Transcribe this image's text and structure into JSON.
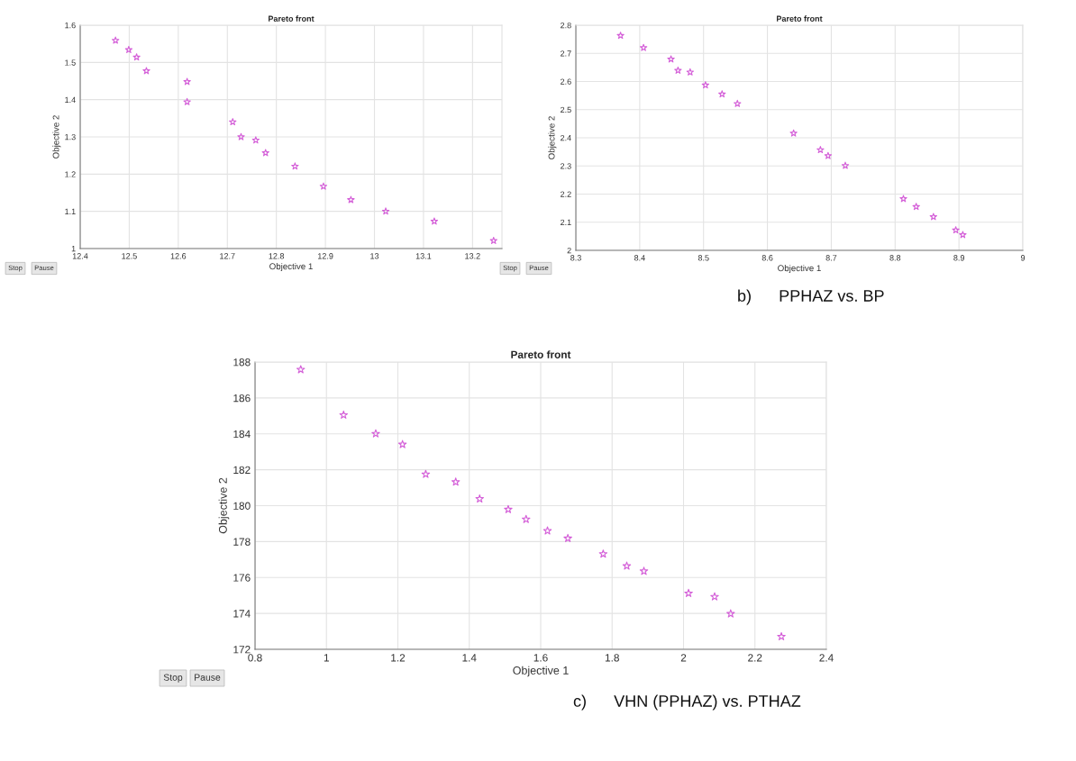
{
  "chart_data": [
    {
      "type": "scatter",
      "title": "Pareto front",
      "xlabel": "Objective 1",
      "ylabel": "Objective 2",
      "marker": "star",
      "grid": true,
      "x": [
        12.472,
        12.499,
        12.515,
        12.535,
        12.618,
        12.618,
        12.711,
        12.728,
        12.758,
        12.778,
        12.838,
        12.896,
        12.952,
        13.023,
        13.122,
        13.243
      ],
      "series": [
        {
          "color": "#d45fd8",
          "values": [
            1.559,
            1.534,
            1.514,
            1.477,
            1.448,
            1.394,
            1.34,
            1.3,
            1.291,
            1.257,
            1.221,
            1.167,
            1.131,
            1.1,
            1.073,
            1.021
          ]
        }
      ],
      "xlim": [
        12.4,
        13.26
      ],
      "xticks": [
        12.4,
        12.5,
        12.6,
        12.7,
        12.8,
        12.9,
        13,
        13.1,
        13.2
      ],
      "ylim": [
        1,
        1.6
      ],
      "yticks": [
        1,
        1.1,
        1.2,
        1.3,
        1.4,
        1.5,
        1.6
      ],
      "annotations": [
        "Stop",
        "Pause"
      ]
    },
    {
      "type": "scatter",
      "title": "Pareto front",
      "xlabel": "Objective 1",
      "ylabel": "Objective 2",
      "marker": "star",
      "grid": true,
      "x": [
        8.37,
        8.406,
        8.449,
        8.46,
        8.479,
        8.503,
        8.529,
        8.553,
        8.641,
        8.683,
        8.695,
        8.722,
        8.813,
        8.833,
        8.86,
        8.895,
        8.906
      ],
      "series": [
        {
          "color": "#d45fd8",
          "values": [
            2.763,
            2.72,
            2.679,
            2.639,
            2.633,
            2.587,
            2.555,
            2.521,
            2.416,
            2.357,
            2.336,
            2.301,
            2.183,
            2.155,
            2.119,
            2.072,
            2.055
          ]
        }
      ],
      "xlim": [
        8.3,
        9
      ],
      "xticks": [
        8.3,
        8.4,
        8.5,
        8.6,
        8.7,
        8.8,
        8.9,
        9
      ],
      "ylim": [
        2,
        2.8
      ],
      "yticks": [
        2,
        2.1,
        2.2,
        2.3,
        2.4,
        2.5,
        2.6,
        2.7,
        2.8
      ],
      "annotations": [
        "Stop",
        "Pause",
        "b)      PPHAZ vs. BP"
      ]
    },
    {
      "type": "scatter",
      "title": "Pareto front",
      "xlabel": "Objective 1",
      "ylabel": "Objective 2",
      "marker": "star",
      "grid": true,
      "x": [
        0.928,
        1.048,
        1.138,
        1.213,
        1.278,
        1.362,
        1.429,
        1.509,
        1.559,
        1.619,
        1.676,
        1.775,
        1.841,
        1.889,
        2.014,
        2.087,
        2.132,
        2.274
      ],
      "series": [
        {
          "color": "#d45fd8",
          "values": [
            187.58,
            185.05,
            184.01,
            183.41,
            181.75,
            181.32,
            180.38,
            179.79,
            179.24,
            178.6,
            178.18,
            177.31,
            176.64,
            176.35,
            175.12,
            174.93,
            173.98,
            172.71
          ]
        }
      ],
      "xlim": [
        0.8,
        2.4
      ],
      "xticks": [
        0.8,
        1,
        1.2,
        1.4,
        1.6,
        1.8,
        2,
        2.2,
        2.4
      ],
      "ylim": [
        172,
        188
      ],
      "yticks": [
        172,
        174,
        176,
        178,
        180,
        182,
        184,
        186,
        188
      ],
      "annotations": [
        "Stop",
        "Pause",
        "c)      VHN (PPHAZ) vs. PTHAZ"
      ]
    }
  ]
}
